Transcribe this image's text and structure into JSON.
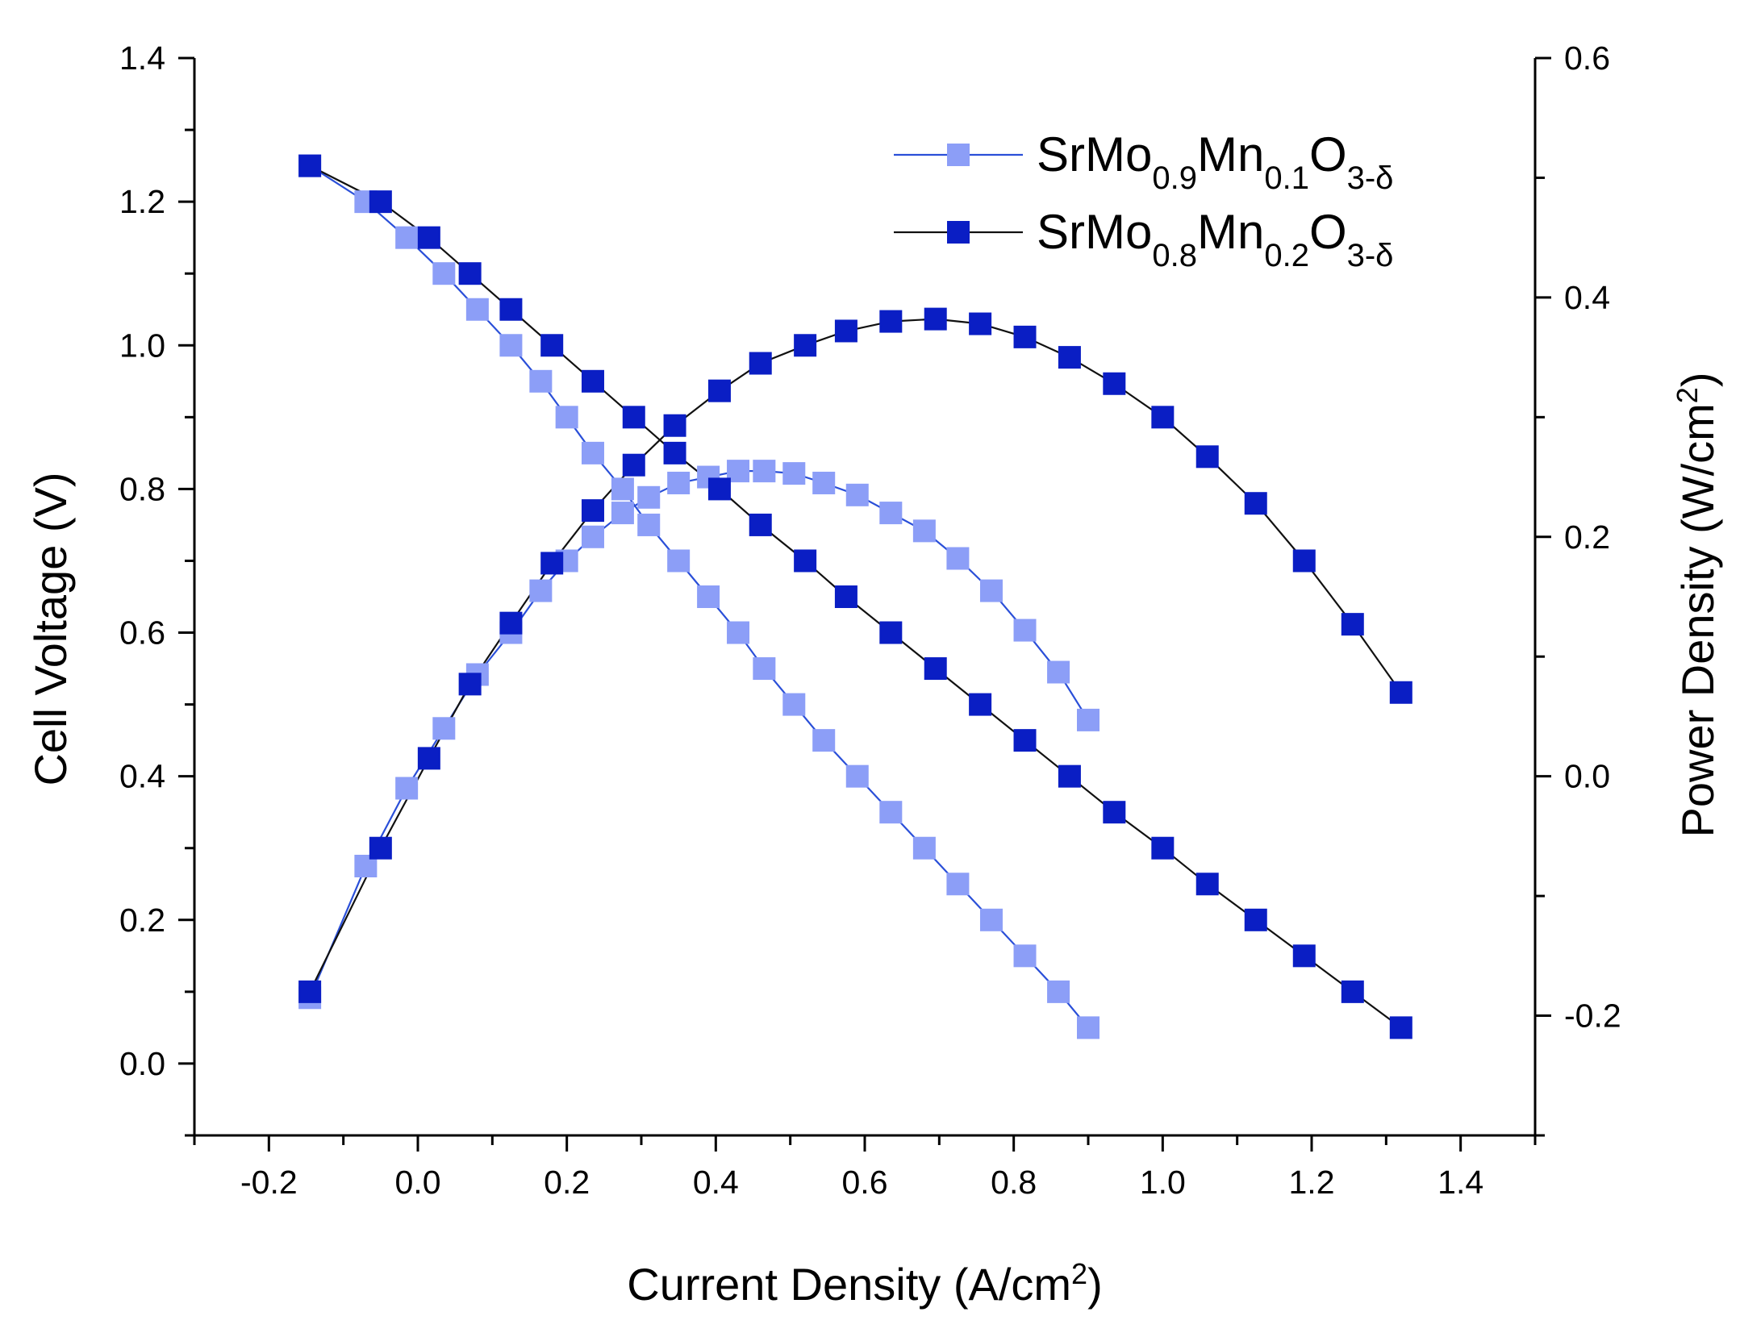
{
  "chart_data": {
    "type": "line",
    "xlabel": {
      "text": "Current Density (A/cm",
      "sup": "2",
      "close": ")"
    },
    "ylabel_left": "Cell Voltage (V)",
    "ylabel_right": {
      "text": "Power Density (W/cm",
      "sup": "2",
      "close": ")"
    },
    "xlim": [
      -0.3,
      1.5
    ],
    "ylim_left": [
      -0.1,
      1.4
    ],
    "ylim_right": [
      -0.3,
      0.6
    ],
    "x_ticks": [
      -0.2,
      0.0,
      0.2,
      0.4,
      0.6,
      0.8,
      1.0,
      1.2,
      1.4
    ],
    "x_tick_labels": [
      "-0.2",
      "0.0",
      "0.2",
      "0.4",
      "0.6",
      "0.8",
      "1.0",
      "1.2",
      "1.4"
    ],
    "y_left_ticks": [
      0.0,
      0.2,
      0.4,
      0.6,
      0.8,
      1.0,
      1.2,
      1.4
    ],
    "y_left_tick_labels": [
      "0.0",
      "0.2",
      "0.4",
      "0.6",
      "0.8",
      "1.0",
      "1.2",
      "1.4"
    ],
    "y_right_ticks": [
      -0.2,
      0.0,
      0.2,
      0.4,
      0.6
    ],
    "y_right_tick_labels": [
      "-0.2",
      "0.0",
      "0.2",
      "0.4",
      "0.6"
    ],
    "legend_position": "top-right",
    "series": [
      {
        "name": "SrMo0.9Mn0.1O3-δ",
        "legend_parts": [
          {
            "t": "SrMo",
            "sub": false
          },
          {
            "t": "0.9",
            "sub": true
          },
          {
            "t": "Mn",
            "sub": false
          },
          {
            "t": "0.1",
            "sub": true
          },
          {
            "t": "O",
            "sub": false
          },
          {
            "t": "3-δ",
            "sub": true
          }
        ],
        "marker_color": "#8c9ef7",
        "line_color": "#2a4fd8",
        "voltage": {
          "x": [
            -0.145,
            -0.07,
            -0.015,
            0.035,
            0.08,
            0.125,
            0.165,
            0.2,
            0.235,
            0.275,
            0.31,
            0.35,
            0.39,
            0.43,
            0.465,
            0.505,
            0.545,
            0.59,
            0.635,
            0.68,
            0.725,
            0.77,
            0.815,
            0.86,
            0.9
          ],
          "y": [
            1.25,
            1.2,
            1.15,
            1.1,
            1.05,
            1.0,
            0.95,
            0.9,
            0.85,
            0.8,
            0.75,
            0.7,
            0.65,
            0.6,
            0.55,
            0.5,
            0.45,
            0.4,
            0.35,
            0.3,
            0.25,
            0.2,
            0.15,
            0.1,
            0.05
          ]
        },
        "power": {
          "x": [
            -0.145,
            -0.07,
            -0.015,
            0.035,
            0.08,
            0.125,
            0.165,
            0.2,
            0.235,
            0.275,
            0.31,
            0.35,
            0.39,
            0.43,
            0.465,
            0.505,
            0.545,
            0.59,
            0.635,
            0.68,
            0.725,
            0.77,
            0.815,
            0.86,
            0.9
          ],
          "y": [
            -0.185,
            -0.075,
            -0.01,
            0.04,
            0.085,
            0.12,
            0.155,
            0.18,
            0.2,
            0.22,
            0.233,
            0.245,
            0.25,
            0.255,
            0.255,
            0.253,
            0.245,
            0.235,
            0.22,
            0.205,
            0.182,
            0.155,
            0.122,
            0.087,
            0.047
          ]
        }
      },
      {
        "name": "SrMo0.8Mn0.2O3-δ",
        "legend_parts": [
          {
            "t": "SrMo",
            "sub": false
          },
          {
            "t": "0.8",
            "sub": true
          },
          {
            "t": "Mn",
            "sub": false
          },
          {
            "t": "0.2",
            "sub": true
          },
          {
            "t": "O",
            "sub": false
          },
          {
            "t": "3-δ",
            "sub": true
          }
        ],
        "marker_color": "#0a1ec4",
        "line_color": "#111111",
        "voltage": {
          "x": [
            -0.145,
            -0.05,
            0.015,
            0.07,
            0.125,
            0.18,
            0.235,
            0.29,
            0.345,
            0.405,
            0.46,
            0.52,
            0.575,
            0.635,
            0.695,
            0.755,
            0.815,
            0.875,
            0.935,
            1.0,
            1.06,
            1.125,
            1.19,
            1.255,
            1.32
          ],
          "y": [
            1.25,
            1.2,
            1.15,
            1.1,
            1.05,
            1.0,
            0.95,
            0.9,
            0.85,
            0.8,
            0.75,
            0.7,
            0.65,
            0.6,
            0.55,
            0.5,
            0.45,
            0.4,
            0.35,
            0.3,
            0.25,
            0.2,
            0.15,
            0.1,
            0.05
          ]
        },
        "power": {
          "x": [
            -0.145,
            -0.05,
            0.015,
            0.07,
            0.125,
            0.18,
            0.235,
            0.29,
            0.345,
            0.405,
            0.46,
            0.52,
            0.575,
            0.635,
            0.695,
            0.755,
            0.815,
            0.875,
            0.935,
            1.0,
            1.06,
            1.125,
            1.19,
            1.255,
            1.32
          ],
          "y": [
            -0.18,
            -0.06,
            0.015,
            0.077,
            0.128,
            0.178,
            0.222,
            0.26,
            0.293,
            0.322,
            0.345,
            0.36,
            0.372,
            0.38,
            0.382,
            0.378,
            0.367,
            0.35,
            0.328,
            0.3,
            0.267,
            0.228,
            0.18,
            0.127,
            0.07
          ]
        }
      }
    ]
  }
}
